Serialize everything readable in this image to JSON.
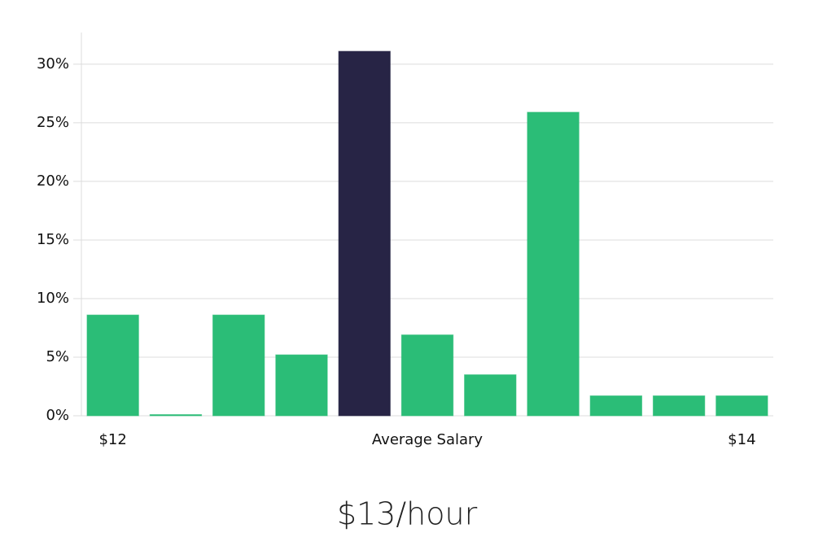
{
  "chart_data": {
    "type": "bar",
    "title": "$13/hour",
    "categories": [
      "$12",
      null,
      null,
      null,
      null,
      "Average Salary",
      null,
      null,
      null,
      null,
      "$14"
    ],
    "values": [
      8.6,
      0.1,
      8.6,
      5.2,
      31.1,
      6.9,
      3.5,
      25.9,
      1.7,
      1.7,
      1.7
    ],
    "colors": [
      "#2bbd77",
      "#2bbd77",
      "#2bbd77",
      "#2bbd77",
      "#272445",
      "#2bbd77",
      "#2bbd77",
      "#2bbd77",
      "#2bbd77",
      "#2bbd77",
      "#2bbd77"
    ],
    "ylim": [
      0,
      32.7
    ],
    "yticks": [
      {
        "value": 0,
        "label": "0%"
      },
      {
        "value": 5,
        "label": "5%"
      },
      {
        "value": 10,
        "label": "10%"
      },
      {
        "value": 15,
        "label": "15%"
      },
      {
        "value": 20,
        "label": "20%"
      },
      {
        "value": 25,
        "label": "25%"
      },
      {
        "value": 30,
        "label": "30%"
      }
    ],
    "grid": true
  }
}
